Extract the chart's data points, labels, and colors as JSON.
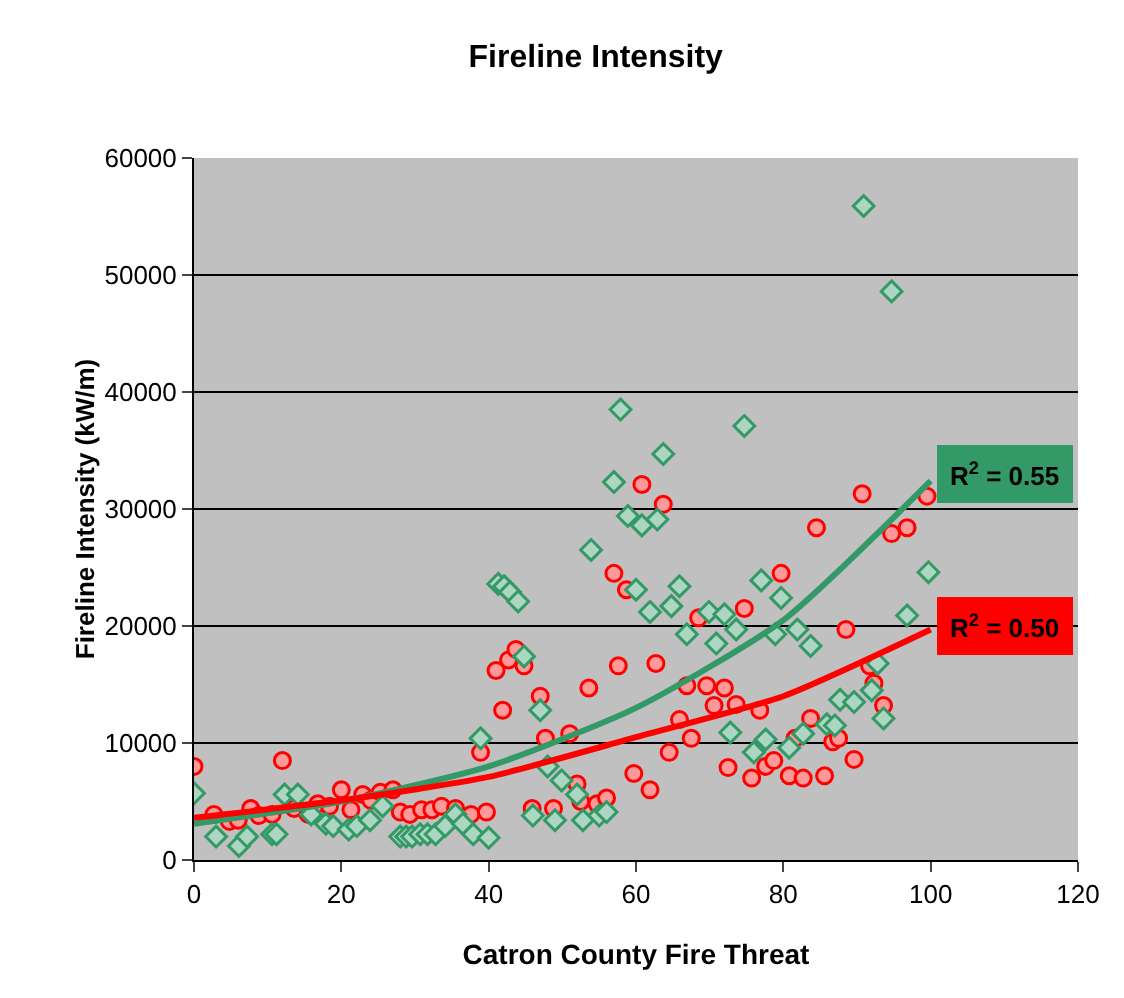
{
  "chart_data": {
    "type": "scatter",
    "title": "Fireline Intensity",
    "xlabel": "Catron County Fire Threat",
    "ylabel": "Fireline Intensity (kW/m)",
    "xlim": [
      0,
      120
    ],
    "xticks": [
      0,
      20,
      40,
      60,
      80,
      100,
      120
    ],
    "ylim": [
      0,
      60000
    ],
    "yticks": [
      0,
      10000,
      20000,
      30000,
      40000,
      50000,
      60000
    ],
    "grid": "y",
    "series": [
      {
        "marker": "circle",
        "color": "#ff0000",
        "x": [
          0,
          2.7,
          4.8,
          6,
          7.7,
          8.8,
          10.6,
          12,
          13.6,
          15.5,
          16.8,
          18.4,
          20,
          21.3,
          22.9,
          24,
          25.3,
          27,
          28,
          29.3,
          30.9,
          32.3,
          33.6,
          35.5,
          37.6,
          39.7,
          38.9,
          41,
          41.9,
          42.7,
          43.7,
          44.8,
          47,
          47.7,
          51,
          45.9,
          48.8,
          52,
          52.5,
          54.7,
          56,
          53.6,
          57,
          58.7,
          57.6,
          59.7,
          61.9,
          62.7,
          64.5,
          65.9,
          66.9,
          67.5,
          68.5,
          69.6,
          70.6,
          72,
          72.5,
          73.6,
          74.7,
          75.7,
          76.8,
          77.6,
          78.7,
          79.7,
          80.8,
          81.6,
          82.7,
          83.7,
          85.6,
          86.7,
          87.5,
          88.5,
          89.6,
          91.7,
          92.3,
          93.6,
          60.8,
          63.7,
          84.5,
          90.7,
          94.7,
          96.8,
          99.5
        ],
        "values": [
          8000,
          3900,
          3300,
          3400,
          4400,
          3800,
          3900,
          8500,
          4400,
          3900,
          4800,
          4600,
          6000,
          4300,
          5600,
          5100,
          5800,
          6000,
          4100,
          3900,
          4300,
          4300,
          4600,
          4400,
          3900,
          4100,
          9200,
          16200,
          12800,
          17100,
          18000,
          16600,
          14000,
          10400,
          10800,
          4400,
          4400,
          6500,
          5000,
          4800,
          5300,
          14700,
          24500,
          23100,
          16600,
          7400,
          6000,
          16800,
          9200,
          12000,
          14900,
          10400,
          20700,
          14900,
          13200,
          14700,
          7900,
          13300,
          21500,
          7000,
          12800,
          8000,
          8500,
          24500,
          7200,
          10400,
          7000,
          12100,
          7200,
          10100,
          10400,
          19700,
          8600,
          16600,
          15100,
          13200,
          32100,
          30400,
          28400,
          31300,
          27900,
          28400,
          31100
        ]
      },
      {
        "marker": "diamond",
        "color": "#339966",
        "x": [
          0,
          3,
          6.1,
          7.2,
          10.6,
          11.2,
          12.3,
          14.1,
          15.9,
          17.9,
          18.9,
          21,
          22.1,
          23.9,
          25.6,
          28,
          28.8,
          29.6,
          30.7,
          31.7,
          32.8,
          34.1,
          35.5,
          36.5,
          37.9,
          40,
          38.9,
          41.3,
          42.1,
          42.9,
          44,
          44.8,
          47,
          48,
          49.9,
          52,
          46,
          49,
          52.8,
          55,
          56,
          60,
          61.9,
          64.8,
          65.9,
          66.9,
          69.9,
          70.9,
          72,
          73.6,
          72.8,
          76,
          77.6,
          77,
          79.7,
          78.9,
          80.8,
          81.9,
          82.7,
          83.7,
          85.9,
          87,
          87.7,
          89.6,
          92,
          92.8,
          93.6,
          96.8,
          99.7,
          90.9,
          94.7,
          57.9,
          74.7,
          63.7,
          57,
          58.9,
          60.8,
          62.9,
          53.9
        ],
        "values": [
          5700,
          2000,
          1200,
          2000,
          2200,
          2200,
          5600,
          5600,
          3900,
          3100,
          2900,
          2600,
          2900,
          3400,
          4600,
          2000,
          2000,
          2000,
          2200,
          2200,
          2200,
          2900,
          3900,
          3100,
          2200,
          1900,
          10400,
          23600,
          23400,
          22900,
          22100,
          17400,
          12800,
          8000,
          6800,
          5600,
          3800,
          3400,
          3400,
          3800,
          4100,
          23100,
          21200,
          21700,
          23400,
          19300,
          21200,
          18500,
          21000,
          19700,
          10900,
          9200,
          10300,
          23900,
          22400,
          19300,
          9600,
          19700,
          10800,
          18300,
          11600,
          11500,
          13700,
          13500,
          14500,
          16800,
          12100,
          20900,
          24600,
          55900,
          48600,
          38500,
          37100,
          34700,
          32300,
          29400,
          28600,
          29100,
          26500
        ]
      },
      {
        "type": "line",
        "marker": "none",
        "line_style": "solid",
        "color": "#339966",
        "x": [
          0,
          20,
          40,
          60,
          80,
          100
        ],
        "values": [
          3100,
          5000,
          8000,
          13000,
          20500,
          32400
        ]
      },
      {
        "type": "line",
        "marker": "none",
        "line_style": "solid",
        "color": "#ff0000",
        "x": [
          0,
          20,
          40,
          60,
          80,
          100
        ],
        "values": [
          3600,
          5100,
          7100,
          10500,
          14000,
          19700
        ]
      }
    ],
    "annotations": [
      {
        "text": "R$^{2}$ = 0.55",
        "x": 100,
        "y": 33000
      },
      {
        "text": "R$^{2}$ = 0.50",
        "x": 100,
        "y": 20000
      }
    ]
  }
}
